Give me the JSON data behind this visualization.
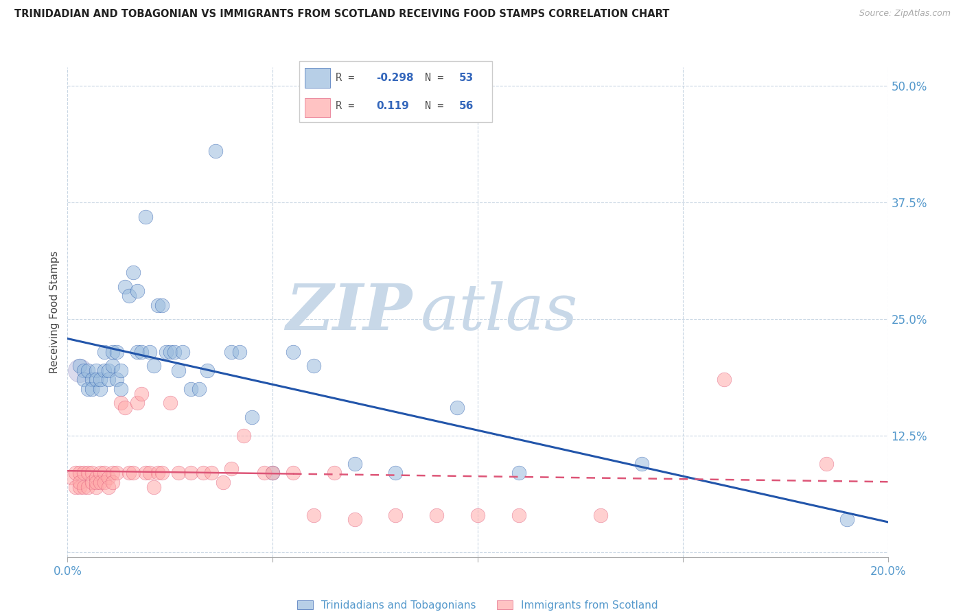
{
  "title": "TRINIDADIAN AND TOBAGONIAN VS IMMIGRANTS FROM SCOTLAND RECEIVING FOOD STAMPS CORRELATION CHART",
  "source": "Source: ZipAtlas.com",
  "ylabel": "Receiving Food Stamps",
  "xlim": [
    0.0,
    0.2
  ],
  "ylim": [
    -0.005,
    0.52
  ],
  "yticks": [
    0.0,
    0.125,
    0.25,
    0.375,
    0.5
  ],
  "ytick_labels": [
    "",
    "12.5%",
    "25.0%",
    "37.5%",
    "50.0%"
  ],
  "xticks": [
    0.0,
    0.05,
    0.1,
    0.15,
    0.2
  ],
  "xtick_labels": [
    "0.0%",
    "",
    "",
    "",
    "20.0%"
  ],
  "blue_color": "#99BBDD",
  "pink_color": "#FFAAAA",
  "blue_line_color": "#2255AA",
  "pink_line_color": "#DD5577",
  "watermark_zip": "ZIP",
  "watermark_atlas": "atlas",
  "legend_label_blue": "Trinidadians and Tobagonians",
  "legend_label_pink": "Immigrants from Scotland",
  "blue_R_label": "R = -0.298",
  "blue_N_label": "N = 53",
  "pink_R_label": "R =   0.119",
  "pink_N_label": "N = 56",
  "blue_x": [
    0.003,
    0.004,
    0.004,
    0.005,
    0.005,
    0.006,
    0.006,
    0.007,
    0.007,
    0.008,
    0.008,
    0.009,
    0.009,
    0.01,
    0.01,
    0.011,
    0.011,
    0.012,
    0.012,
    0.013,
    0.013,
    0.014,
    0.015,
    0.016,
    0.017,
    0.017,
    0.018,
    0.019,
    0.02,
    0.021,
    0.022,
    0.023,
    0.024,
    0.025,
    0.026,
    0.027,
    0.028,
    0.03,
    0.032,
    0.034,
    0.036,
    0.04,
    0.042,
    0.045,
    0.05,
    0.055,
    0.06,
    0.07,
    0.08,
    0.095,
    0.11,
    0.14,
    0.19
  ],
  "blue_y": [
    0.2,
    0.195,
    0.185,
    0.195,
    0.175,
    0.185,
    0.175,
    0.195,
    0.185,
    0.175,
    0.185,
    0.195,
    0.215,
    0.185,
    0.195,
    0.215,
    0.2,
    0.215,
    0.185,
    0.175,
    0.195,
    0.285,
    0.275,
    0.3,
    0.28,
    0.215,
    0.215,
    0.36,
    0.215,
    0.2,
    0.265,
    0.265,
    0.215,
    0.215,
    0.215,
    0.195,
    0.215,
    0.175,
    0.175,
    0.195,
    0.43,
    0.215,
    0.215,
    0.145,
    0.085,
    0.215,
    0.2,
    0.095,
    0.085,
    0.155,
    0.085,
    0.095,
    0.035
  ],
  "pink_x": [
    0.001,
    0.002,
    0.002,
    0.003,
    0.003,
    0.003,
    0.004,
    0.004,
    0.005,
    0.005,
    0.006,
    0.006,
    0.007,
    0.007,
    0.007,
    0.008,
    0.008,
    0.009,
    0.009,
    0.01,
    0.01,
    0.011,
    0.011,
    0.012,
    0.013,
    0.014,
    0.015,
    0.016,
    0.017,
    0.018,
    0.019,
    0.02,
    0.021,
    0.022,
    0.023,
    0.025,
    0.027,
    0.03,
    0.033,
    0.035,
    0.038,
    0.04,
    0.043,
    0.048,
    0.05,
    0.055,
    0.06,
    0.065,
    0.07,
    0.08,
    0.09,
    0.1,
    0.11,
    0.13,
    0.16,
    0.185
  ],
  "pink_y": [
    0.08,
    0.085,
    0.07,
    0.085,
    0.07,
    0.075,
    0.085,
    0.07,
    0.085,
    0.07,
    0.085,
    0.075,
    0.08,
    0.07,
    0.075,
    0.085,
    0.075,
    0.085,
    0.075,
    0.08,
    0.07,
    0.085,
    0.075,
    0.085,
    0.16,
    0.155,
    0.085,
    0.085,
    0.16,
    0.17,
    0.085,
    0.085,
    0.07,
    0.085,
    0.085,
    0.16,
    0.085,
    0.085,
    0.085,
    0.085,
    0.075,
    0.09,
    0.125,
    0.085,
    0.085,
    0.085,
    0.04,
    0.085,
    0.035,
    0.04,
    0.04,
    0.04,
    0.04,
    0.04,
    0.185,
    0.095
  ]
}
